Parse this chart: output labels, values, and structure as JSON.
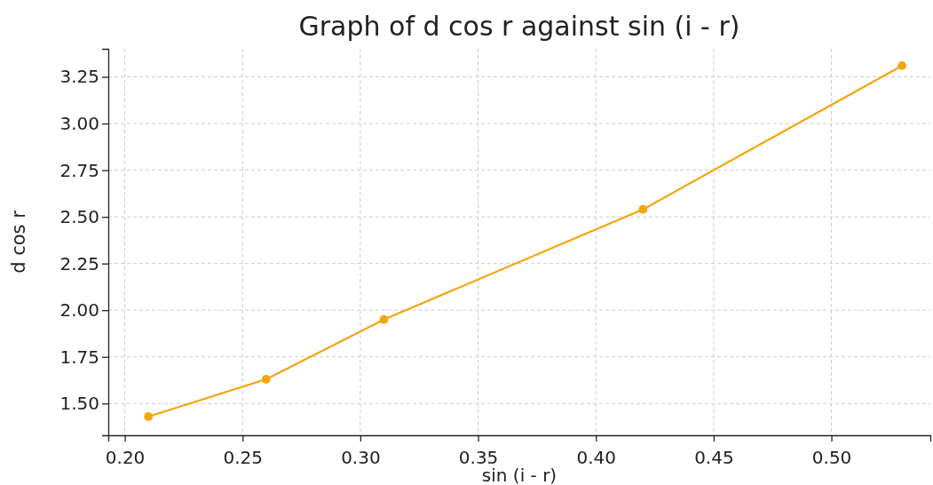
{
  "chart_data": {
    "type": "line",
    "title": "Graph of d cos r against sin (i - r)",
    "xlabel": "sin (i - r)",
    "ylabel": "d cos r",
    "x": [
      0.21,
      0.26,
      0.31,
      0.42,
      0.53
    ],
    "series": [
      {
        "color": "#f5a50f",
        "values": [
          1.43,
          1.63,
          1.95,
          2.54,
          3.31
        ]
      }
    ],
    "xlim": [
      0.193,
      0.542
    ],
    "xticks": [
      {
        "value": 0.2,
        "label": "0.20"
      },
      {
        "value": 0.25,
        "label": "0.25"
      },
      {
        "value": 0.3,
        "label": "0.30"
      },
      {
        "value": 0.35,
        "label": "0.35"
      },
      {
        "value": 0.4,
        "label": "0.40"
      },
      {
        "value": 0.45,
        "label": "0.45"
      },
      {
        "value": 0.5,
        "label": "0.50"
      }
    ],
    "ylim": [
      1.33,
      3.4
    ],
    "yticks": [
      {
        "value": 1.5,
        "label": "1.50"
      },
      {
        "value": 1.75,
        "label": "1.75"
      },
      {
        "value": 2.0,
        "label": "2.00"
      },
      {
        "value": 2.25,
        "label": "2.25"
      },
      {
        "value": 2.5,
        "label": "2.50"
      },
      {
        "value": 2.75,
        "label": "2.75"
      },
      {
        "value": 3.0,
        "label": "3.00"
      },
      {
        "value": 3.25,
        "label": "3.25"
      }
    ],
    "grid": true,
    "marker": "circle",
    "line_style": "solid"
  }
}
